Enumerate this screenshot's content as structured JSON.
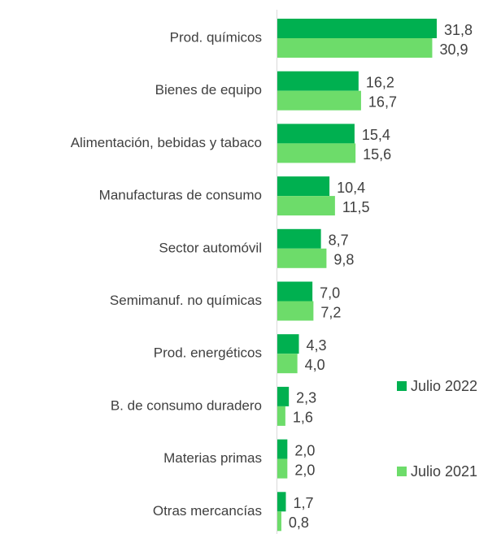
{
  "chart_data": {
    "type": "bar",
    "orientation": "horizontal",
    "categories": [
      "Prod. químicos",
      "Bienes de equipo",
      "Alimentación, bebidas y tabaco",
      "Manufacturas de consumo",
      "Sector automóvil",
      "Semimanuf. no químicas",
      "Prod. energéticos",
      "B. de consumo duradero",
      "Materias primas",
      "Otras mercancías"
    ],
    "series": [
      {
        "name": "Julio 2022",
        "color": "#00b050",
        "values": [
          31.8,
          16.2,
          15.4,
          10.4,
          8.7,
          7.0,
          4.3,
          2.3,
          2.0,
          1.7
        ],
        "value_labels": [
          "31,8",
          "16,2",
          "15,4",
          "10,4",
          "8,7",
          "7,0",
          "4,3",
          "2,3",
          "2,0",
          "1,7"
        ]
      },
      {
        "name": "Julio 2021",
        "color": "#6ddc6a",
        "values": [
          30.9,
          16.7,
          15.6,
          11.5,
          9.8,
          7.2,
          4.0,
          1.6,
          2.0,
          0.8
        ],
        "value_labels": [
          "30,9",
          "16,7",
          "15,6",
          "11,5",
          "9,8",
          "7,2",
          "4,0",
          "1,6",
          "2,0",
          "0,8"
        ]
      }
    ],
    "legend": "right"
  }
}
